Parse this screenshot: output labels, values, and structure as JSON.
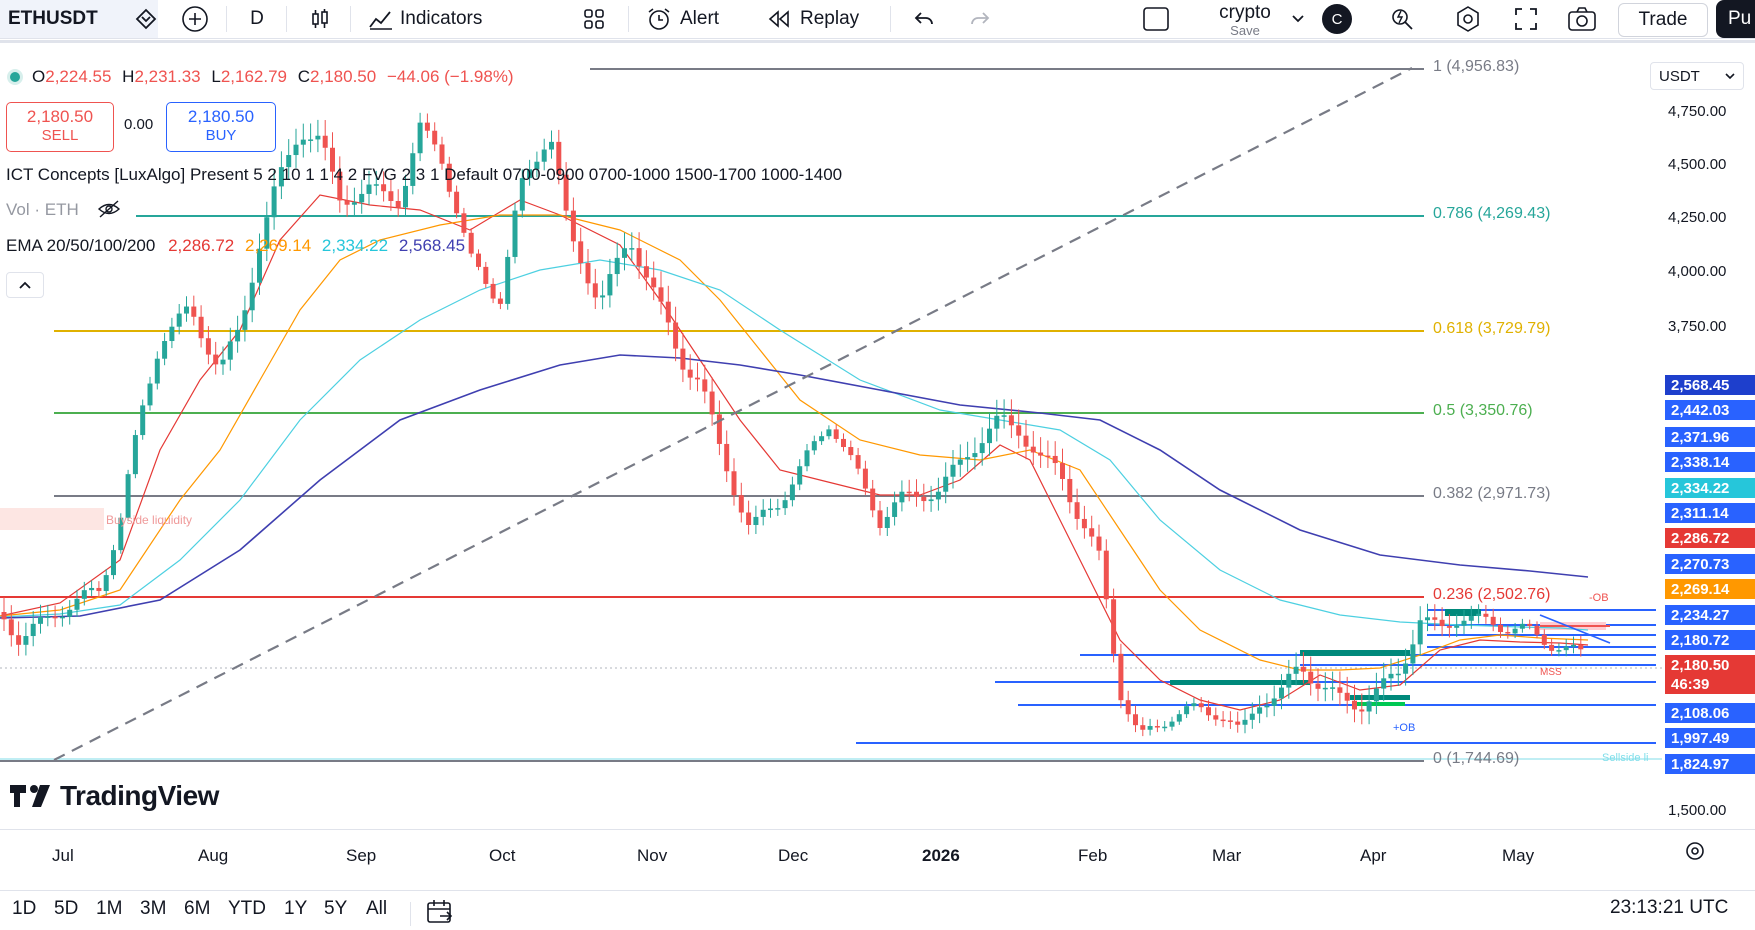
{
  "toolbar": {
    "symbol": "ETHUSDT",
    "interval": "D",
    "indicators_label": "Indicators",
    "alert_label": "Alert",
    "replay_label": "Replay",
    "layout_name": "crypto",
    "layout_sub": "Save",
    "avatar_letter": "C",
    "trade_label": "Trade",
    "publish_partial": "Pu"
  },
  "legend": {
    "ohlc": {
      "o_label": "O",
      "o": "2,224.55",
      "h_label": "H",
      "h": "2,231.33",
      "l_label": "L",
      "l": "2,162.79",
      "c_label": "C",
      "c": "2,180.50",
      "change": "−44.06 (−1.98%)"
    },
    "sell_price": "2,180.50",
    "sell_label": "SELL",
    "spread": "0.00",
    "buy_price": "2,180.50",
    "buy_label": "BUY",
    "ict_line": "ICT Concepts [LuxAlgo] Present 5 2 10 1 1 4 2 FVG 2 3 1 Default 0700-0900 0700-1000 1500-1700 1000-1400",
    "vol_line": "Vol · ETH",
    "ema_label": "EMA 20/50/100/200",
    "ema20": "2,286.72",
    "ema50": "2,269.14",
    "ema100": "2,334.22",
    "ema200": "2,568.45"
  },
  "currency": "USDT",
  "fib_levels": [
    {
      "label": "1 (4,956.83)",
      "color": "#787b86"
    },
    {
      "label": "0.786 (4,269.43)",
      "color": "#26a69a"
    },
    {
      "label": "0.618 (3,729.79)",
      "color": "#e0b100"
    },
    {
      "label": "0.5 (3,350.76)",
      "color": "#4caf50"
    },
    {
      "label": "0.382 (2,971.73)",
      "color": "#787b86"
    },
    {
      "label": "0.236 (2,502.76)",
      "color": "#e53935"
    },
    {
      "label": "0 (1,744.69)",
      "color": "#787b86"
    }
  ],
  "annotations": {
    "buyside": "Buyside liquidity",
    "sellside": "Sellside li",
    "minus_ob": "-OB",
    "plus_ob": "+OB",
    "mss": "MSS"
  },
  "price_axis": [
    "4,750.00",
    "4,500.00",
    "4,250.00",
    "4,000.00",
    "3,750.00",
    "1,500.00"
  ],
  "price_tags": [
    {
      "value": "2,568.45",
      "color": "#1e3fcc"
    },
    {
      "value": "2,442.03",
      "color": "#2962ff"
    },
    {
      "value": "2,371.96",
      "color": "#2962ff"
    },
    {
      "value": "2,338.14",
      "color": "#2962ff"
    },
    {
      "value": "2,334.22",
      "color": "#26c6da"
    },
    {
      "value": "2,311.14",
      "color": "#2962ff"
    },
    {
      "value": "2,286.72",
      "color": "#e53935"
    },
    {
      "value": "2,270.73",
      "color": "#2962ff"
    },
    {
      "value": "2,269.14",
      "color": "#ff9800"
    },
    {
      "value": "2,234.27",
      "color": "#2962ff"
    },
    {
      "value": "2,180.72",
      "color": "#2962ff"
    },
    {
      "value": "2,180.50",
      "color": "#e53935"
    },
    {
      "value": "2,108.06",
      "color": "#2962ff"
    },
    {
      "value": "1,997.49",
      "color": "#2962ff"
    },
    {
      "value": "1,824.97",
      "color": "#2962ff"
    }
  ],
  "countdown": "46:39",
  "time_axis": [
    "Jul",
    "Aug",
    "Sep",
    "Oct",
    "Nov",
    "Dec",
    "2026",
    "Feb",
    "Mar",
    "Apr",
    "May"
  ],
  "brand": "TradingView",
  "ranges": [
    "1D",
    "5D",
    "1M",
    "3M",
    "6M",
    "YTD",
    "1Y",
    "5Y",
    "All"
  ],
  "clock": "23:13:21 UTC",
  "colors": {
    "up": "#26a69a",
    "down": "#ef5350",
    "ema20": "#e53935",
    "ema50": "#ff9800",
    "ema100": "#4dd0e1",
    "ema200": "#3f3fb0"
  }
}
